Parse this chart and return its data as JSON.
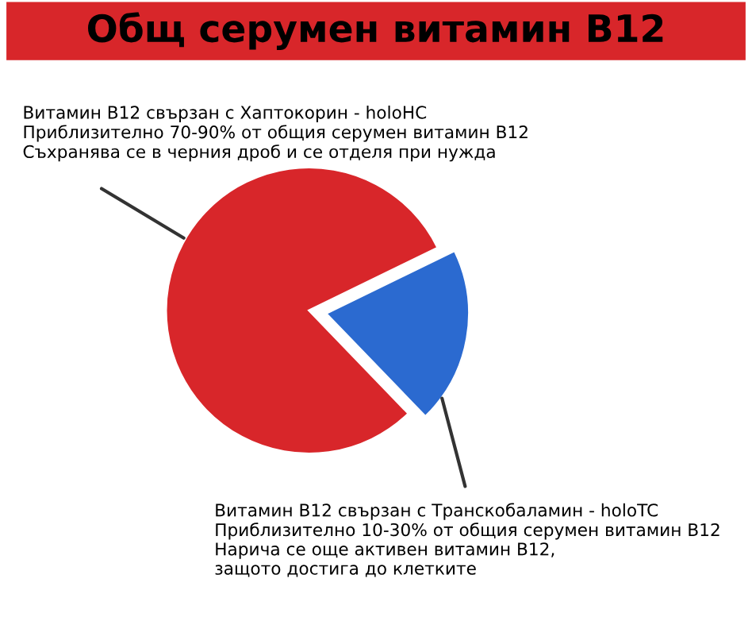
{
  "chart_data": {
    "type": "pie",
    "title": "Общ серумен витамин B12",
    "categories": [
      "Витамин B12 свързан с Хаптокорин - holoHC\nПриблизително 70-90% от общия серумен витамин B12\nСъхранява се в черния дроб и се отделя при нужда",
      "Витамин B12 свързан с Транскобаламин - holoTC\nПриблизително 10-30% от общия серумен витамин B12\nНарича се още активен витамин B12,\nзащото достига до клетките"
    ],
    "values": [
      80,
      20
    ],
    "colors": [
      "#d8262a",
      "#2b6ad0"
    ]
  }
}
